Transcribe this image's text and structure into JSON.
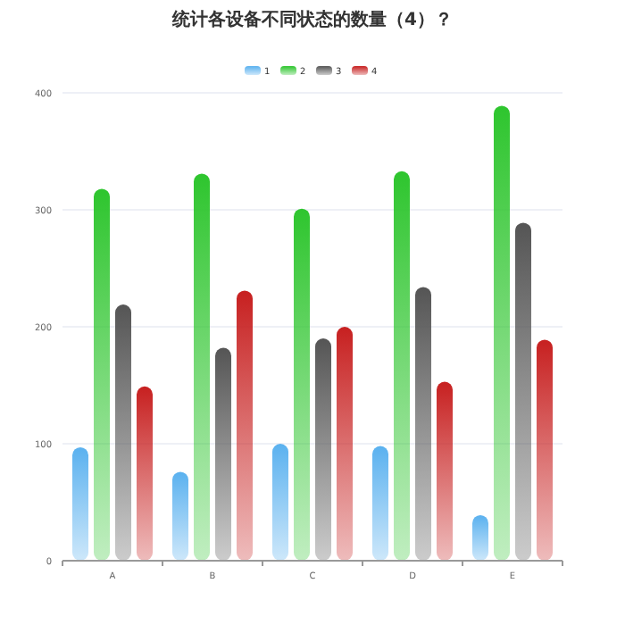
{
  "chart_data": {
    "type": "bar",
    "title": "统计各设备不同状态的数量（4）？",
    "categories": [
      "A",
      "B",
      "C",
      "D",
      "E"
    ],
    "series": [
      {
        "name": "1",
        "color": "#5ab1ef",
        "values": [
          97,
          76,
          100,
          98,
          39
        ]
      },
      {
        "name": "2",
        "color": "#2ec52e",
        "values": [
          318,
          331,
          301,
          333,
          389
        ]
      },
      {
        "name": "3",
        "color": "#555555",
        "values": [
          219,
          182,
          190,
          234,
          289
        ]
      },
      {
        "name": "4",
        "color": "#c72020",
        "values": [
          149,
          231,
          200,
          153,
          189
        ]
      }
    ],
    "ylim": [
      0,
      400
    ],
    "yticks": [
      0,
      100,
      200,
      300,
      400
    ],
    "grid": "y",
    "legend": "top"
  }
}
